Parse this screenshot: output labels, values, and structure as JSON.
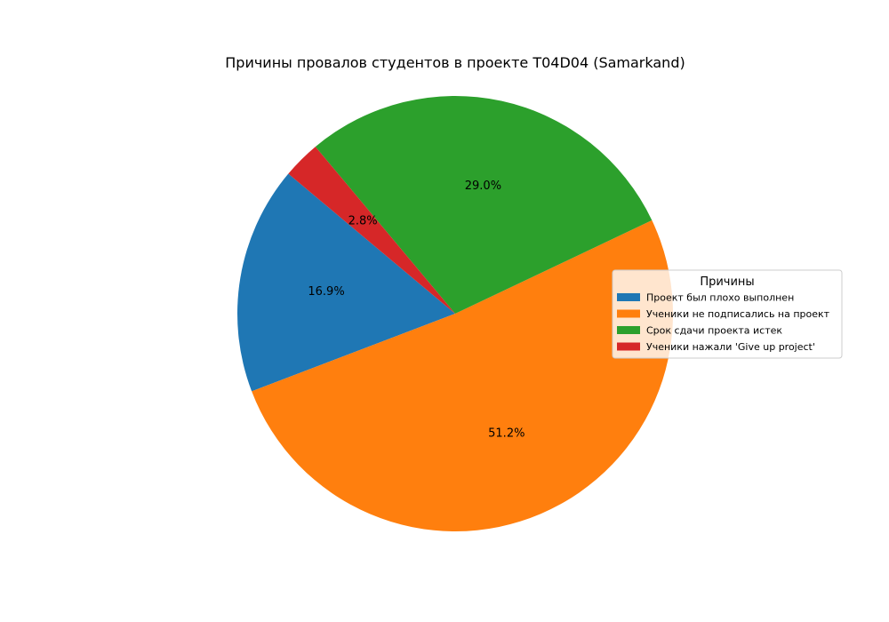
{
  "chart_data": {
    "type": "pie",
    "title": "Причины провалов студентов в проекте T04D04 (Samarkand)",
    "slices": [
      {
        "label": "Проект был плохо выполнен",
        "value": 16.9,
        "pct_label": "16.9%",
        "color": "#1f77b4"
      },
      {
        "label": "Ученики не подписались на проект",
        "value": 51.2,
        "pct_label": "51.2%",
        "color": "#ff7f0e"
      },
      {
        "label": "Срок сдачи проекта истек",
        "value": 29.0,
        "pct_label": "29.0%",
        "color": "#2ca02c"
      },
      {
        "label": "Ученики нажали 'Give up project'",
        "value": 2.8,
        "pct_label": "2.8%",
        "color": "#d62728"
      }
    ],
    "start_angle_deg": 140,
    "direction": "counterclockwise",
    "legend": {
      "title": "Причины",
      "placement": "center-right"
    }
  }
}
